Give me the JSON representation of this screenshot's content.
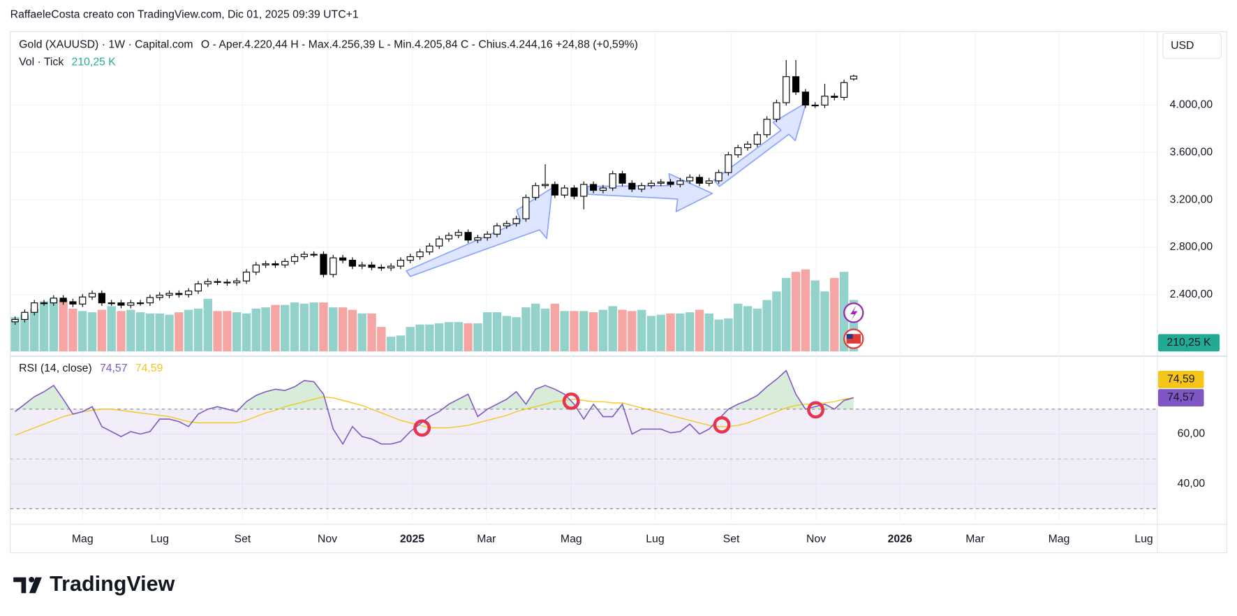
{
  "header": "RaffaeleCosta creato con TradingView.com, Dic 01, 2025 09:39 UTC+1",
  "brand": "TradingView",
  "currency": "USD",
  "chart_data": [
    {
      "type": "candlestick",
      "title": "Gold (XAUUSD) · 1W · Capital.com",
      "legend": "O - Aper.4.220,44   H - Max.4.256,39   L - Min.4.205,84   C - Chius.4.244,16   +24,88 (+0,59%)",
      "up_color": "#ffffff",
      "down_color": "#000000",
      "border_color": "#000000",
      "open": [
        2170,
        2190,
        2250,
        2330,
        2330,
        2370,
        2340,
        2320,
        2380,
        2410,
        2330,
        2330,
        2310,
        2330,
        2330,
        2375,
        2395,
        2410,
        2400,
        2430,
        2490,
        2510,
        2505,
        2500,
        2515,
        2590,
        2650,
        2660,
        2650,
        2680,
        2720,
        2740,
        2740,
        2570,
        2710,
        2690,
        2640,
        2650,
        2630,
        2625,
        2640,
        2690,
        2720,
        2760,
        2810,
        2870,
        2900,
        2925,
        2860,
        2880,
        2910,
        2980,
        3000,
        3040,
        3220,
        3320,
        3330,
        3240,
        3300,
        3230,
        3330,
        3280,
        3300,
        3420,
        3340,
        3290,
        3320,
        3340,
        3350,
        3330,
        3360,
        3390,
        3340,
        3360,
        3430,
        3580,
        3640,
        3670,
        3750,
        3880,
        4020,
        4240,
        4110,
        4000,
        4000,
        4075,
        4065,
        4220.44
      ],
      "high": [
        2215,
        2275,
        2355,
        2355,
        2395,
        2395,
        2365,
        2405,
        2435,
        2435,
        2355,
        2355,
        2355,
        2355,
        2400,
        2420,
        2435,
        2435,
        2455,
        2515,
        2535,
        2535,
        2530,
        2540,
        2615,
        2675,
        2685,
        2685,
        2705,
        2745,
        2765,
        2765,
        2765,
        2735,
        2735,
        2715,
        2675,
        2675,
        2655,
        2665,
        2715,
        2745,
        2785,
        2835,
        2895,
        2925,
        2950,
        2950,
        2905,
        2935,
        3005,
        3025,
        3065,
        3245,
        3345,
        3500,
        3355,
        3325,
        3325,
        3355,
        3355,
        3325,
        3445,
        3445,
        3365,
        3345,
        3365,
        3375,
        3375,
        3385,
        3415,
        3415,
        3385,
        3455,
        3605,
        3665,
        3695,
        3775,
        3905,
        4045,
        4380,
        4380,
        4135,
        4025,
        4180,
        4100,
        4215,
        4256.39
      ],
      "low": [
        2145,
        2165,
        2225,
        2305,
        2305,
        2315,
        2295,
        2295,
        2355,
        2305,
        2305,
        2285,
        2285,
        2305,
        2305,
        2350,
        2370,
        2375,
        2375,
        2405,
        2465,
        2480,
        2475,
        2475,
        2490,
        2565,
        2625,
        2625,
        2625,
        2655,
        2695,
        2715,
        2545,
        2545,
        2665,
        2615,
        2615,
        2605,
        2600,
        2600,
        2615,
        2665,
        2695,
        2735,
        2785,
        2845,
        2875,
        2835,
        2835,
        2855,
        2885,
        2955,
        2975,
        3015,
        3195,
        3295,
        3215,
        3215,
        3205,
        3120,
        3255,
        3255,
        3275,
        3315,
        3265,
        3265,
        3295,
        3315,
        3305,
        3305,
        3335,
        3315,
        3315,
        3335,
        3405,
        3555,
        3615,
        3645,
        3725,
        3855,
        3995,
        4085,
        3975,
        3975,
        3975,
        4040,
        4040,
        4205.84
      ],
      "close": [
        2190,
        2250,
        2330,
        2330,
        2370,
        2340,
        2320,
        2380,
        2410,
        2330,
        2330,
        2310,
        2330,
        2330,
        2375,
        2395,
        2410,
        2400,
        2430,
        2490,
        2510,
        2505,
        2500,
        2515,
        2590,
        2650,
        2660,
        2650,
        2680,
        2720,
        2740,
        2740,
        2570,
        2710,
        2690,
        2640,
        2650,
        2630,
        2625,
        2640,
        2690,
        2720,
        2760,
        2810,
        2870,
        2900,
        2925,
        2860,
        2880,
        2910,
        2980,
        3000,
        3040,
        3220,
        3320,
        3330,
        3240,
        3300,
        3230,
        3330,
        3280,
        3300,
        3420,
        3340,
        3290,
        3320,
        3340,
        3350,
        3330,
        3360,
        3390,
        3340,
        3360,
        3430,
        3580,
        3640,
        3670,
        3750,
        3880,
        4020,
        4240,
        4110,
        4000,
        4000,
        4075,
        4065,
        4190,
        4244.16
      ],
      "ylim": [
        1920,
        4607
      ],
      "yticks": [
        {
          "value": 2400,
          "label": "2.400,00"
        },
        {
          "value": 2800,
          "label": "2.800,00"
        },
        {
          "value": 3200,
          "label": "3.200,00"
        },
        {
          "value": 3600,
          "label": "3.600,00"
        },
        {
          "value": 4000,
          "label": "4.000,00"
        }
      ],
      "xlim": [
        0,
        119
      ],
      "xticks": [
        {
          "value": 7.5,
          "label": "Mag"
        },
        {
          "value": 15.5,
          "label": "Lug"
        },
        {
          "value": 24.1,
          "label": "Set"
        },
        {
          "value": 32.9,
          "label": "Nov"
        },
        {
          "value": 41.7,
          "label": "2025"
        },
        {
          "value": 49.4,
          "label": "Mar"
        },
        {
          "value": 58.2,
          "label": "Mag"
        },
        {
          "value": 66.9,
          "label": "Lug"
        },
        {
          "value": 74.8,
          "label": "Set"
        },
        {
          "value": 83.6,
          "label": "Nov"
        },
        {
          "value": 92.3,
          "label": "2026"
        },
        {
          "value": 100.1,
          "label": "Mar"
        },
        {
          "value": 108.8,
          "label": "Mag"
        },
        {
          "value": 117.6,
          "label": "Lug"
        }
      ],
      "grid": true
    },
    {
      "type": "bar",
      "title": "Vol · Tick",
      "up_color": "#92d2cb",
      "down_color": "#f5a6a4",
      "label_color": "#22ab94",
      "values": [
        140,
        150,
        175,
        205,
        215,
        210,
        175,
        165,
        160,
        170,
        185,
        165,
        170,
        160,
        155,
        155,
        150,
        160,
        170,
        175,
        215,
        165,
        165,
        160,
        155,
        175,
        180,
        190,
        190,
        200,
        195,
        200,
        200,
        180,
        180,
        170,
        155,
        155,
        100,
        60,
        65,
        100,
        110,
        110,
        115,
        120,
        120,
        115,
        115,
        160,
        160,
        145,
        140,
        180,
        195,
        175,
        195,
        165,
        165,
        165,
        160,
        170,
        185,
        170,
        165,
        170,
        145,
        150,
        155,
        155,
        160,
        170,
        155,
        130,
        135,
        195,
        185,
        175,
        210,
        245,
        300,
        325,
        335,
        290,
        245,
        300,
        325,
        210.25
      ],
      "last_label": "210,25 K",
      "ylim": [
        0,
        1300
      ]
    },
    {
      "type": "line",
      "title": "RSI (14, close)",
      "series": [
        {
          "color": "#7e57c2",
          "last_label": "74,57",
          "values": [
            69,
            72,
            75,
            77,
            79.5,
            74,
            68,
            69,
            71,
            63,
            61,
            59,
            61,
            60,
            61,
            66,
            66,
            65,
            63,
            68,
            70,
            71,
            70,
            69,
            73,
            75.5,
            77,
            78,
            77.5,
            79,
            81.5,
            81,
            76,
            62,
            56,
            63,
            59,
            58,
            56,
            56,
            57,
            61,
            64,
            67,
            69,
            72,
            74,
            76,
            67,
            70,
            72,
            74,
            77,
            72,
            78,
            79.5,
            78,
            76,
            72,
            66,
            72,
            67,
            67,
            72,
            60,
            62,
            62,
            62,
            60.5,
            61,
            64,
            60,
            62,
            66,
            70,
            72,
            73.5,
            75.5,
            79,
            82,
            85.5,
            76,
            70,
            71,
            72,
            70,
            73.5,
            74.57
          ]
        },
        {
          "color": "#f5c518",
          "last_label": "74,59",
          "values": [
            59.5,
            61,
            62.5,
            64,
            65.5,
            67,
            68,
            69,
            69.5,
            70,
            70,
            69.5,
            69,
            68.5,
            68,
            67.5,
            67,
            66,
            65,
            64.5,
            64.5,
            64.5,
            64.5,
            64.5,
            65.5,
            67,
            68.5,
            69.5,
            71,
            72,
            73,
            74,
            75,
            74.5,
            73.5,
            72.5,
            71.5,
            70,
            68.5,
            67,
            65.5,
            64.5,
            63.5,
            62.5,
            62.5,
            62.5,
            63,
            63.5,
            64.5,
            65.5,
            66.5,
            67.5,
            69,
            70,
            71,
            72,
            73,
            73.5,
            74,
            73.5,
            73,
            73,
            72.5,
            72.5,
            71.5,
            70.5,
            69.5,
            68.5,
            67.5,
            66.5,
            65.5,
            64.5,
            63.5,
            63,
            63,
            63.5,
            64.5,
            66,
            67.5,
            69,
            70.5,
            71.5,
            72,
            72,
            72.5,
            73,
            74,
            74.59
          ]
        }
      ],
      "bands": [
        70,
        50,
        30
      ],
      "ylim": [
        25,
        90
      ],
      "yticks": [
        {
          "value": 40,
          "label": "40,00"
        },
        {
          "value": 60,
          "label": "60,00"
        }
      ]
    }
  ]
}
